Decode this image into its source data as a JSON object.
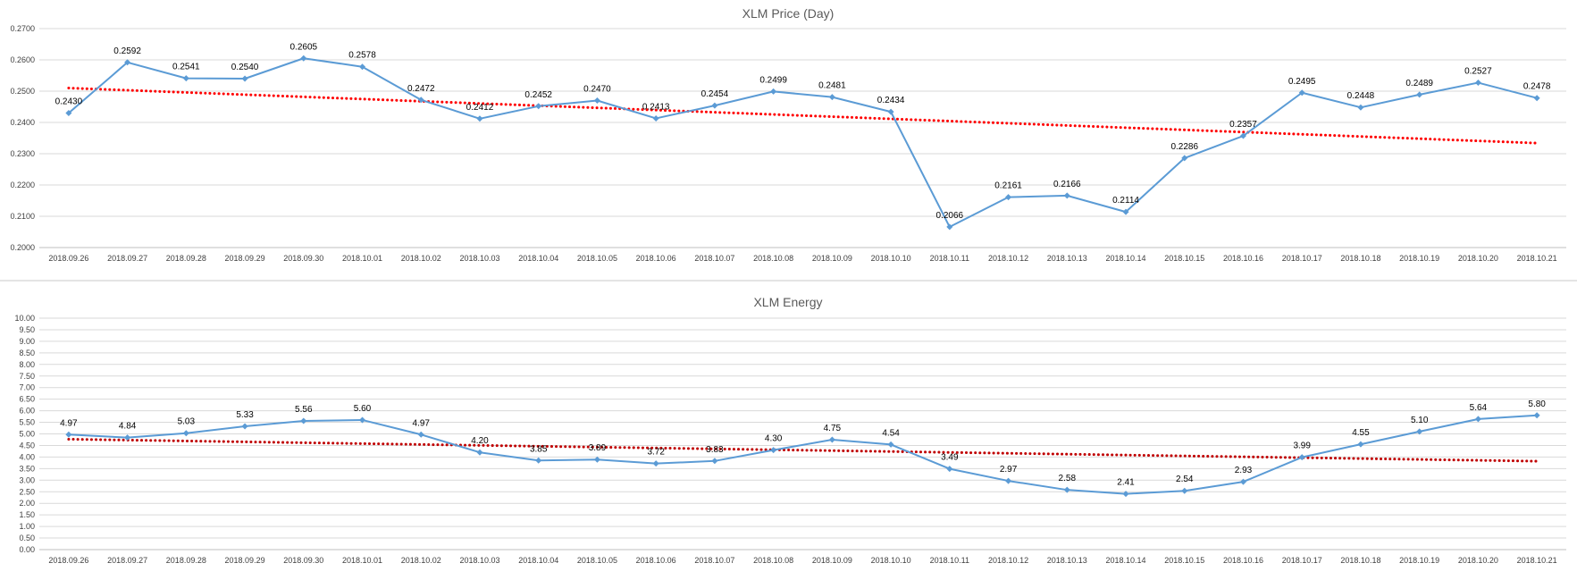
{
  "chart_data": [
    {
      "type": "line",
      "title": "XLM Price (Day)",
      "xlabel": "",
      "ylabel": "",
      "ylim": [
        0.2,
        0.27
      ],
      "yticks": [
        "0.2000",
        "0.2100",
        "0.2200",
        "0.2300",
        "0.2400",
        "0.2500",
        "0.2600",
        "0.2700"
      ],
      "categories": [
        "2018.09.26",
        "2018.09.27",
        "2018.09.28",
        "2018.09.29",
        "2018.09.30",
        "2018.10.01",
        "2018.10.02",
        "2018.10.03",
        "2018.10.04",
        "2018.10.05",
        "2018.10.06",
        "2018.10.07",
        "2018.10.08",
        "2018.10.09",
        "2018.10.10",
        "2018.10.11",
        "2018.10.12",
        "2018.10.13",
        "2018.10.14",
        "2018.10.15",
        "2018.10.16",
        "2018.10.17",
        "2018.10.18",
        "2018.10.19",
        "2018.10.20",
        "2018.10.21"
      ],
      "series": [
        {
          "values": [
            0.243,
            0.2592,
            0.2541,
            0.254,
            0.2605,
            0.2578,
            0.2472,
            0.2412,
            0.2452,
            0.247,
            0.2413,
            0.2454,
            0.2499,
            0.2481,
            0.2434,
            0.2066,
            0.2161,
            0.2166,
            0.2114,
            0.2286,
            0.2357,
            0.2495,
            0.2448,
            0.2489,
            0.2527,
            0.2478
          ],
          "labels": [
            "0.2430",
            "0.2592",
            "0.2541",
            "0.2540",
            "0.2605",
            "0.2578",
            "0.2472",
            "0.2412",
            "0.2452",
            "0.2470",
            "0.2413",
            "0.2454",
            "0.2499",
            "0.2481",
            "0.2434",
            "0.2066",
            "0.2161",
            "0.2166",
            "0.2114",
            "0.2286",
            "0.2357",
            "0.2495",
            "0.2448",
            "0.2489",
            "0.2527",
            "0.2478"
          ],
          "color": "#5b9bd5"
        }
      ],
      "trendline": {
        "color": "#ff0000",
        "style": "dotted",
        "start": 0.251,
        "end": 0.2334
      },
      "grid": true,
      "legend": "none"
    },
    {
      "type": "line",
      "title": "XLM Energy",
      "xlabel": "",
      "ylabel": "",
      "ylim": [
        0,
        10
      ],
      "yticks": [
        "0.00",
        "0.50",
        "1.00",
        "1.50",
        "2.00",
        "2.50",
        "3.00",
        "3.50",
        "4.00",
        "4.50",
        "5.00",
        "5.50",
        "6.00",
        "6.50",
        "7.00",
        "7.50",
        "8.00",
        "8.50",
        "9.00",
        "9.50",
        "10.00"
      ],
      "categories": [
        "2018.09.26",
        "2018.09.27",
        "2018.09.28",
        "2018.09.29",
        "2018.09.30",
        "2018.10.01",
        "2018.10.02",
        "2018.10.03",
        "2018.10.04",
        "2018.10.05",
        "2018.10.06",
        "2018.10.07",
        "2018.10.08",
        "2018.10.09",
        "2018.10.10",
        "2018.10.11",
        "2018.10.12",
        "2018.10.13",
        "2018.10.14",
        "2018.10.15",
        "2018.10.16",
        "2018.10.17",
        "2018.10.18",
        "2018.10.19",
        "2018.10.20",
        "2018.10.21"
      ],
      "series": [
        {
          "values": [
            4.97,
            4.84,
            5.03,
            5.33,
            5.56,
            5.6,
            4.97,
            4.2,
            3.85,
            3.89,
            3.72,
            3.83,
            4.3,
            4.75,
            4.54,
            3.49,
            2.97,
            2.58,
            2.41,
            2.54,
            2.93,
            3.99,
            4.55,
            5.1,
            5.64,
            5.8
          ],
          "labels": [
            "4.97",
            "4.84",
            "5.03",
            "5.33",
            "5.56",
            "5.60",
            "4.97",
            "4.20",
            "3.85",
            "3.89",
            "3.72",
            "3.83",
            "4.30",
            "4.75",
            "4.54",
            "3.49",
            "2.97",
            "2.58",
            "2.41",
            "2.54",
            "2.93",
            "3.99",
            "4.55",
            "5.10",
            "5.64",
            "5.80"
          ],
          "color": "#5b9bd5"
        }
      ],
      "trendline": {
        "color": "#c00000",
        "style": "dotted",
        "start": 4.77,
        "end": 3.82
      },
      "grid": true,
      "legend": "none"
    }
  ]
}
